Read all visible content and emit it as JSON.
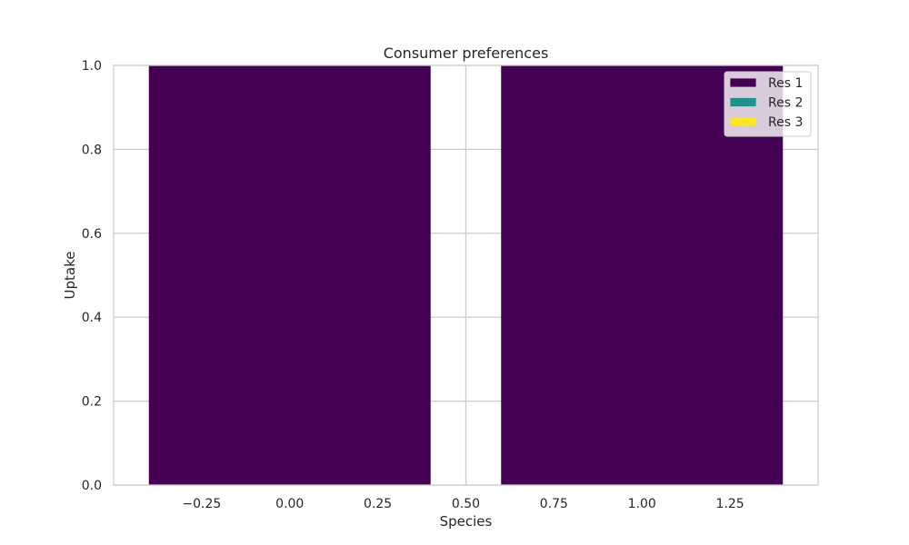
{
  "chart_data": {
    "type": "bar",
    "stacked": true,
    "title": "Consumer preferences",
    "xlabel": "Species",
    "ylabel": "Uptake",
    "x": [
      0,
      1
    ],
    "bar_width": 0.8,
    "series": [
      {
        "name": "Res 1",
        "values": [
          1.0,
          1.0
        ],
        "color": "#440154"
      },
      {
        "name": "Res 2",
        "values": [
          0.0,
          0.0
        ],
        "color": "#21918c"
      },
      {
        "name": "Res 3",
        "values": [
          0.0,
          0.0
        ],
        "color": "#fde725"
      }
    ],
    "xlim": [
      -0.5,
      1.5
    ],
    "ylim": [
      0,
      1.0
    ],
    "xticks": [
      -0.25,
      0.0,
      0.25,
      0.5,
      0.75,
      1.0,
      1.25
    ],
    "xtick_labels": [
      "−0.25",
      "0.00",
      "0.25",
      "0.50",
      "0.75",
      "1.00",
      "1.25"
    ],
    "yticks": [
      0.0,
      0.2,
      0.4,
      0.6,
      0.8,
      1.0
    ],
    "ytick_labels": [
      "0.0",
      "0.2",
      "0.4",
      "0.6",
      "0.8",
      "1.0"
    ],
    "grid": true,
    "legend_position": "top-right",
    "grid_color": "#cccccc",
    "background": "#ffffff"
  }
}
